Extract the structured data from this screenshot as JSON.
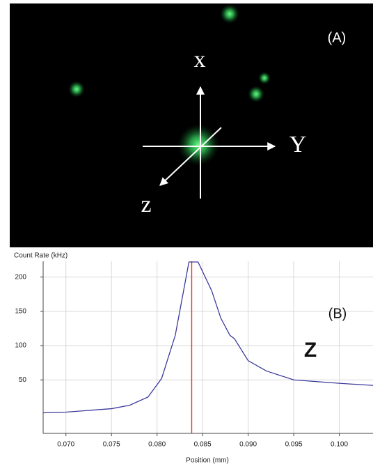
{
  "panel_a": {
    "label": "(A)",
    "axis_labels": [
      "x",
      "Y",
      "z"
    ]
  },
  "chart_data": {
    "type": "line",
    "title": "Count Rate (kHz)",
    "x_label": "Position (mm)",
    "annotations": [
      "(B)",
      "Z"
    ],
    "x": [
      0.0675,
      0.07,
      0.075,
      0.077,
      0.079,
      0.0805,
      0.082,
      0.0835,
      0.0845,
      0.086,
      0.087,
      0.088,
      0.0885,
      0.09,
      0.092,
      0.095,
      0.1,
      0.1037
    ],
    "values": [
      2,
      3,
      8,
      13,
      25,
      52,
      115,
      222,
      222,
      180,
      140,
      115,
      110,
      78,
      63,
      50,
      45,
      42
    ],
    "color": "#3a3a9a",
    "marker_x": 0.0838,
    "marker_color": "#e8402a",
    "xlim": [
      0.0675,
      0.1037
    ],
    "xticks": [
      {
        "value": 0.07,
        "label": "0.070"
      },
      {
        "value": 0.075,
        "label": "0.075"
      },
      {
        "value": 0.08,
        "label": "0.080"
      },
      {
        "value": 0.085,
        "label": "0.085"
      },
      {
        "value": 0.09,
        "label": "0.090"
      },
      {
        "value": 0.095,
        "label": "0.095"
      },
      {
        "value": 0.1,
        "label": "0.100"
      }
    ],
    "ylim": [
      -28,
      223
    ],
    "yticks": [
      50,
      100,
      150,
      200
    ],
    "grid": true
  }
}
